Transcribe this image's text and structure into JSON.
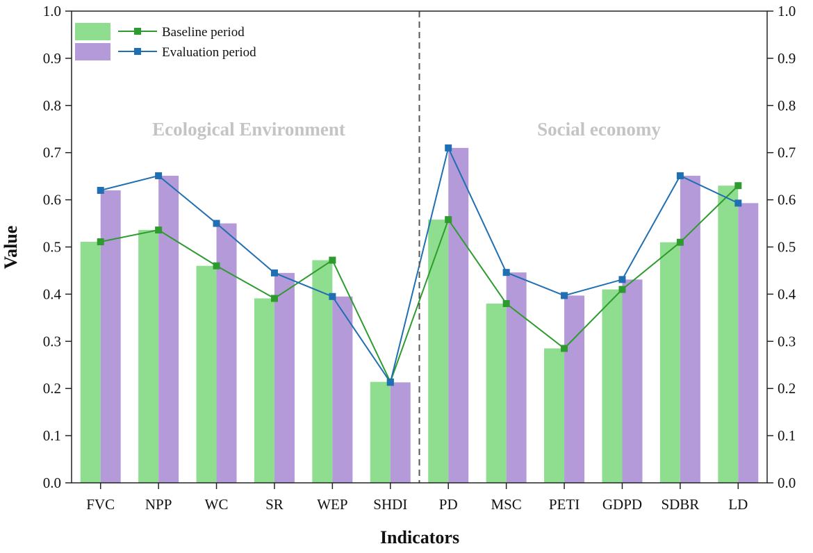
{
  "chart_data": {
    "type": "bar",
    "title": "",
    "xlabel": "Indicators",
    "ylabel": "Value",
    "ylim": [
      0,
      1.0
    ],
    "yticks": [
      "0.0",
      "0.1",
      "0.2",
      "0.3",
      "0.4",
      "0.5",
      "0.6",
      "0.7",
      "0.8",
      "0.9",
      "1.0"
    ],
    "categories": [
      "FVC",
      "NPP",
      "WC",
      "SR",
      "WEP",
      "SHDI",
      "PD",
      "MSC",
      "PETI",
      "GDPD",
      "SDBR",
      "LD"
    ],
    "series": [
      {
        "name": "Baseline period",
        "values": [
          0.511,
          0.536,
          0.46,
          0.391,
          0.472,
          0.214,
          0.558,
          0.38,
          0.285,
          0.41,
          0.51,
          0.63
        ],
        "bar_color": "#8fdd8f",
        "line_color": "#2e9b2e"
      },
      {
        "name": "Evaluation period",
        "values": [
          0.62,
          0.651,
          0.55,
          0.445,
          0.395,
          0.213,
          0.71,
          0.446,
          0.397,
          0.431,
          0.651,
          0.593
        ],
        "bar_color": "#b59ad9",
        "line_color": "#1f6fb2"
      }
    ],
    "groups": [
      {
        "label": "Ecological Environment",
        "categories": [
          "FVC",
          "NPP",
          "WC",
          "SR",
          "WEP",
          "SHDI"
        ]
      },
      {
        "label": "Social economy",
        "categories": [
          "PD",
          "MSC",
          "PETI",
          "GDPD",
          "SDBR",
          "LD"
        ]
      }
    ],
    "legend_position": "top-left",
    "separator_after": "SHDI",
    "dual_y_axis": true
  }
}
